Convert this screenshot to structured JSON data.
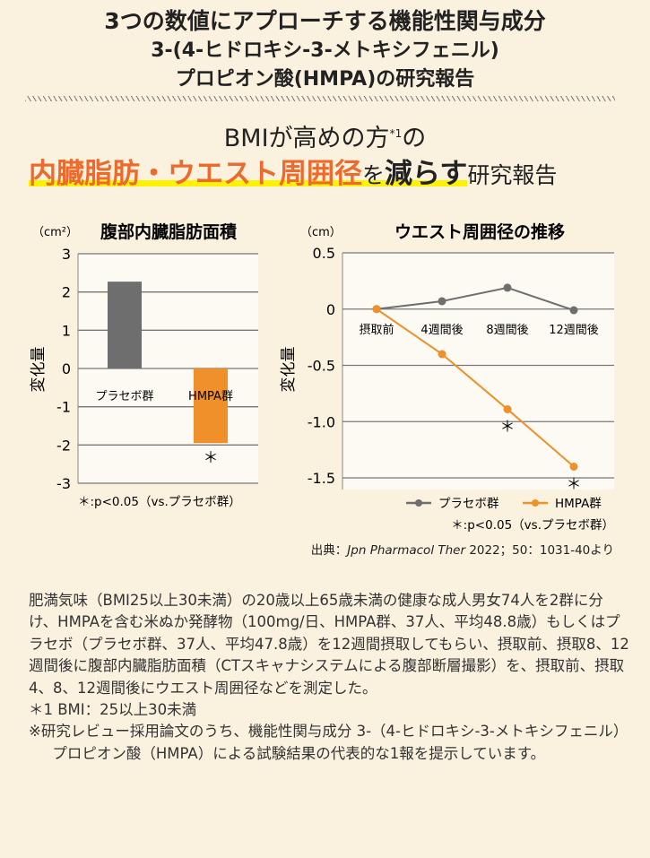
{
  "header": {
    "title1": "3つの数値にアプローチする機能性関与成分",
    "title2": "3-(4-ヒドロキシ-3-メトキシフェニル)",
    "title3": "プロピオン酸(HMPA)の研究報告",
    "sub1_a": "BMIが高めの方",
    "sub1_sup": "*1",
    "sub1_b": "の",
    "sub2_orange": "内臓脂肪・ウエスト周囲径",
    "sub2_wo": "を",
    "sub2_bold": "減らす",
    "sub2_tail": "研究報告"
  },
  "colors": {
    "placebo": "#6e6e6e",
    "hmpa": "#f0902a",
    "highlight": "#fff200",
    "accent_text": "#ee6a2c"
  },
  "chart_data": [
    {
      "type": "bar",
      "title": "腹部内臓脂肪面積",
      "unit": "（cm²）",
      "ylabel": "変化量",
      "ylim": [
        -3,
        3
      ],
      "yticks": [
        "3",
        "2",
        "1",
        "0",
        "-1",
        "-2",
        "-3"
      ],
      "categories": [
        "プラセボ群",
        "HMPA群"
      ],
      "values": [
        2.27,
        -1.95
      ],
      "significance": [
        "",
        "＊"
      ],
      "grid": true,
      "note": "＊:p<0.05（vs.プラセボ群）"
    },
    {
      "type": "line",
      "title": "ウエスト周囲径の推移",
      "unit": "（cm）",
      "ylabel": "変化量",
      "ylim": [
        -1.5,
        0.5
      ],
      "yticks": [
        "0.5",
        "0",
        "-0.5",
        "-1.0",
        "-1.5"
      ],
      "categories": [
        "摂取前",
        "4週間後",
        "8週間後",
        "12週間後"
      ],
      "series": [
        {
          "name": "プラセボ群",
          "values": [
            0,
            0.07,
            0.19,
            -0.01
          ]
        },
        {
          "name": "HMPA群",
          "values": [
            0,
            -0.4,
            -0.89,
            -1.4
          ],
          "significance": [
            "",
            "",
            "＊",
            "＊"
          ]
        }
      ],
      "grid": true,
      "legend": "bottom-right",
      "note": "＊:p<0.05（vs.プラセボ群）"
    }
  ],
  "source": {
    "prefix": "出典：",
    "journal": "Jpn Pharmacol Ther",
    "rest": " 2022；50：1031-40より"
  },
  "body": [
    "肥満気味（BMI25以上30未満）の20歳以上65歳未満の健康な成人男女74人を2群に分け、HMPAを含む米ぬか発酵物（100mg/日、HMPA群、37人、平均48.8歳）もしくはプラセボ（プラセボ群、37人、平均47.8歳）を12週間摂取してもらい、摂取前、摂取8、12週間後に腹部内臓脂肪面積（CTスキャナシステムによる腹部断層撮影）を、摂取前、摂取4、8、12週間後にウエスト周囲径などを測定した。",
    "＊1 BMI：25以上30未満",
    "※研究レビュー採用論文のうち、機能性関与成分 3-（4-ヒドロキシ-3-メトキシフェニル）プロピオン酸（HMPA）による試験結果の代表的な1報を提示しています。"
  ]
}
